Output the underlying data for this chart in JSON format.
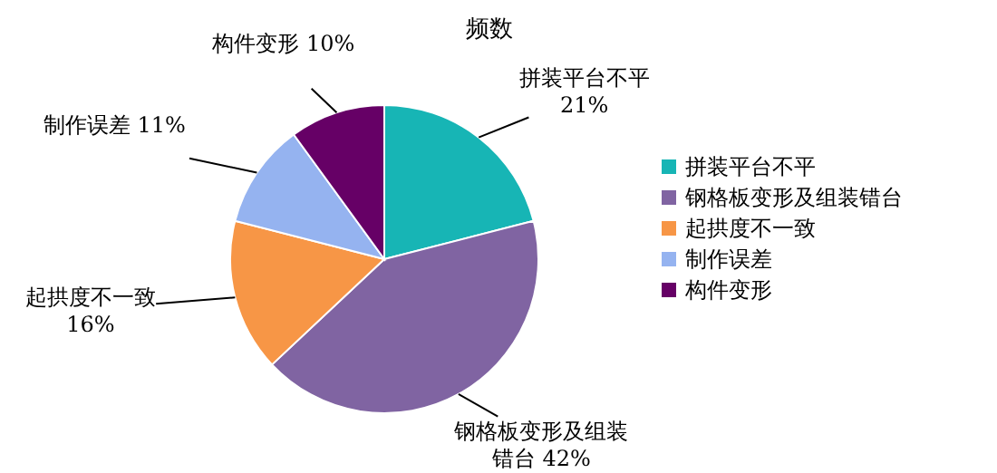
{
  "chart_data": {
    "type": "pie",
    "title": "频数",
    "categories": [
      "拼装平台不平",
      "钢格板变形及组装错台",
      "起拱度不一致",
      "制作误差",
      "构件变形"
    ],
    "values": [
      21,
      42,
      16,
      11,
      10
    ],
    "colors": [
      "#17b5b5",
      "#8064a2",
      "#f79646",
      "#95b3f0",
      "#660066"
    ],
    "value_labels": [
      "21%",
      "42%",
      "16%",
      "11%",
      "10%"
    ],
    "legend": "right"
  }
}
